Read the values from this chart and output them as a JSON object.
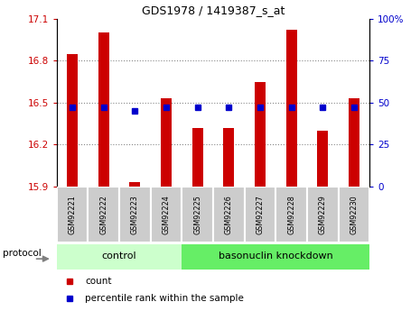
{
  "title": "GDS1978 / 1419387_s_at",
  "samples": [
    "GSM92221",
    "GSM92222",
    "GSM92223",
    "GSM92224",
    "GSM92225",
    "GSM92226",
    "GSM92227",
    "GSM92228",
    "GSM92229",
    "GSM92230"
  ],
  "count_values": [
    16.85,
    17.0,
    15.93,
    16.53,
    16.32,
    16.32,
    16.65,
    17.02,
    16.3,
    16.53
  ],
  "percentile_values": [
    47,
    47,
    45,
    47,
    47,
    47,
    47,
    47,
    47,
    47
  ],
  "ylim_left": [
    15.9,
    17.1
  ],
  "ylim_right": [
    0,
    100
  ],
  "yticks_left": [
    15.9,
    16.2,
    16.5,
    16.8,
    17.1
  ],
  "yticks_right": [
    0,
    25,
    50,
    75,
    100
  ],
  "ytick_labels_right": [
    "0",
    "25",
    "50",
    "75",
    "100%"
  ],
  "grid_lines": [
    16.2,
    16.5,
    16.8
  ],
  "groups": [
    {
      "label": "control",
      "start": 0,
      "end": 3,
      "color": "#ccffcc"
    },
    {
      "label": "basonuclin knockdown",
      "start": 4,
      "end": 9,
      "color": "#66ee66"
    }
  ],
  "bar_color": "#cc0000",
  "percentile_color": "#0000cc",
  "bar_width": 0.35,
  "percentile_marker_size": 4,
  "grid_color": "#888888",
  "background_color": "#ffffff",
  "sample_box_color": "#cccccc",
  "protocol_label": "protocol",
  "legend_items": [
    {
      "label": "count",
      "color": "#cc0000"
    },
    {
      "label": "percentile rank within the sample",
      "color": "#0000cc"
    }
  ],
  "title_fontsize": 9,
  "axis_fontsize": 7.5,
  "sample_fontsize": 5.8,
  "group_fontsize": 8,
  "legend_fontsize": 7.5
}
